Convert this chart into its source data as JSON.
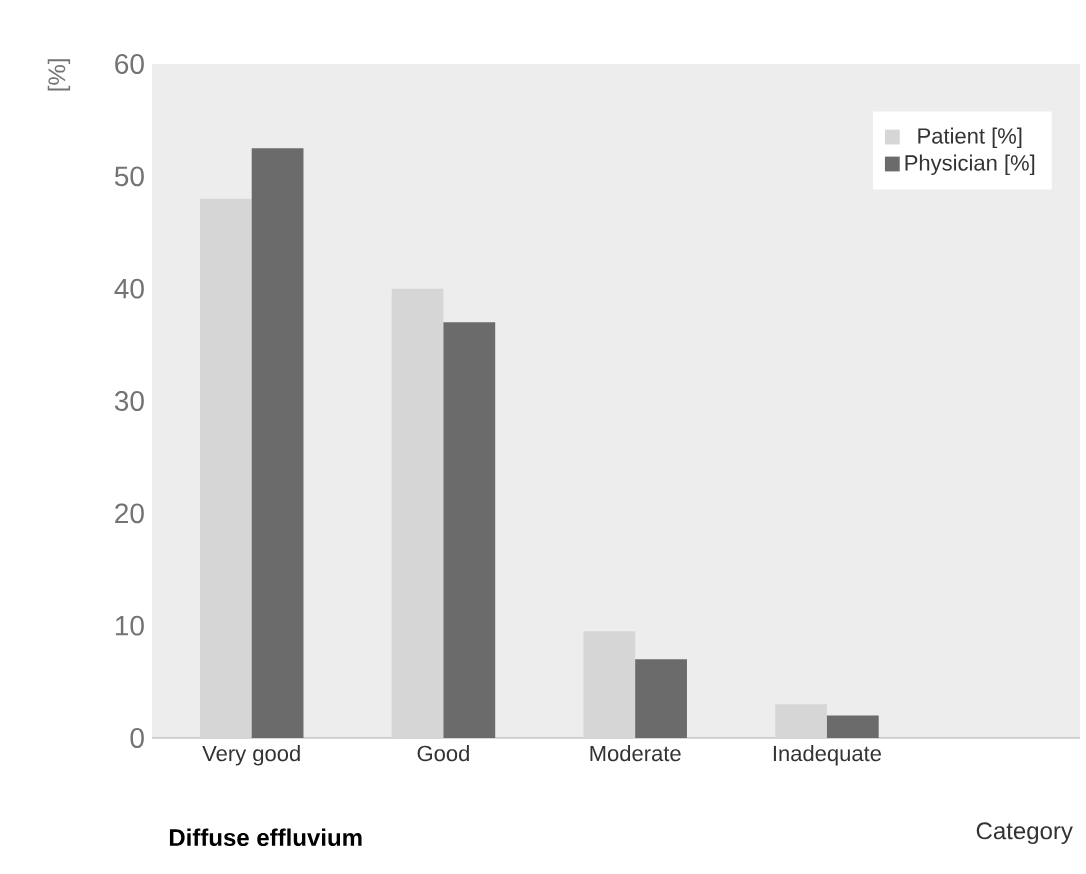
{
  "chart_data": {
    "type": "bar",
    "title": "Diffuse effluvium",
    "xlabel": "Category",
    "ylabel": "[%]",
    "categories": [
      "Very good",
      "Good",
      "Moderate",
      "Inadequate"
    ],
    "series": [
      {
        "name": "Patient [%]",
        "color": "#d6d6d6",
        "values": [
          48,
          40,
          9.5,
          3
        ]
      },
      {
        "name": "Physician [%]",
        "color": "#6b6b6b",
        "values": [
          52.5,
          37,
          7,
          2
        ]
      }
    ],
    "ylim": [
      0,
      60
    ],
    "yticks": [
      0,
      10,
      20,
      30,
      40,
      50,
      60
    ],
    "legend": "top right"
  }
}
